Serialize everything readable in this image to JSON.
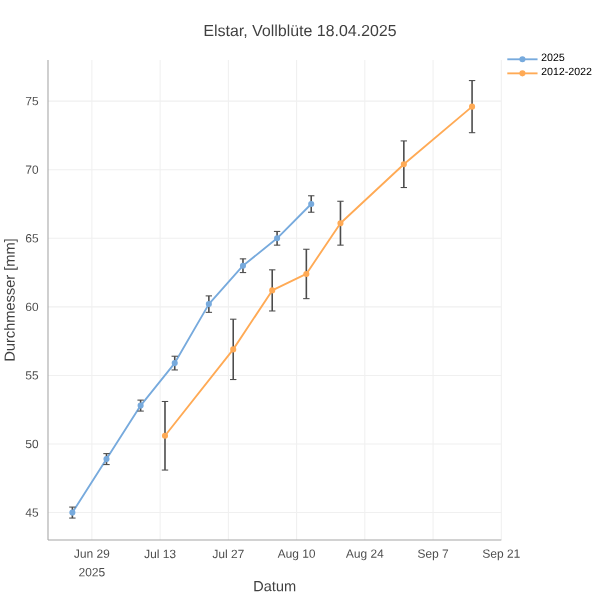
{
  "chart_data": {
    "type": "line",
    "title": "Elstar, Vollblüte 18.04.2025",
    "xlabel": "Datum",
    "ylabel": "Durchmesser [mm]",
    "series": [
      {
        "name": "2025",
        "color": "#77aadd",
        "x": [
          "2025-06-25",
          "2025-07-02",
          "2025-07-09",
          "2025-07-16",
          "2025-07-23",
          "2025-07-30",
          "2025-08-06",
          "2025-08-13"
        ],
        "values": [
          45.0,
          48.9,
          52.8,
          55.9,
          60.2,
          63.0,
          65.0,
          67.5
        ],
        "errors": [
          0.4,
          0.4,
          0.4,
          0.5,
          0.6,
          0.5,
          0.5,
          0.6
        ]
      },
      {
        "name": "2012-2022",
        "color": "#ffaa55",
        "x": [
          "2025-07-14",
          "2025-07-28",
          "2025-08-05",
          "2025-08-12",
          "2025-08-19",
          "2025-09-01",
          "2025-09-15"
        ],
        "values": [
          50.6,
          56.9,
          61.2,
          62.4,
          66.1,
          70.4,
          74.6
        ],
        "errors": [
          2.5,
          2.2,
          1.5,
          1.8,
          1.6,
          1.7,
          1.9
        ]
      }
    ],
    "xlim": [
      "2025-06-20",
      "2025-09-21"
    ],
    "xticks": [
      {
        "value": "2025-06-29",
        "label": "Jun 29"
      },
      {
        "value": "2025-07-13",
        "label": "Jul 13"
      },
      {
        "value": "2025-07-27",
        "label": "Jul 27"
      },
      {
        "value": "2025-08-10",
        "label": "Aug 10"
      },
      {
        "value": "2025-08-24",
        "label": "Aug 24"
      },
      {
        "value": "2025-09-07",
        "label": "Sep 7"
      },
      {
        "value": "2025-09-21",
        "label": "Sep 21"
      }
    ],
    "ylim": [
      43,
      78
    ],
    "yticks": [
      45,
      50,
      55,
      60,
      65,
      70,
      75
    ],
    "annotations": [
      "2025"
    ],
    "grid": true,
    "legend": "top right",
    "marker": "circle",
    "line_style": "solid"
  }
}
